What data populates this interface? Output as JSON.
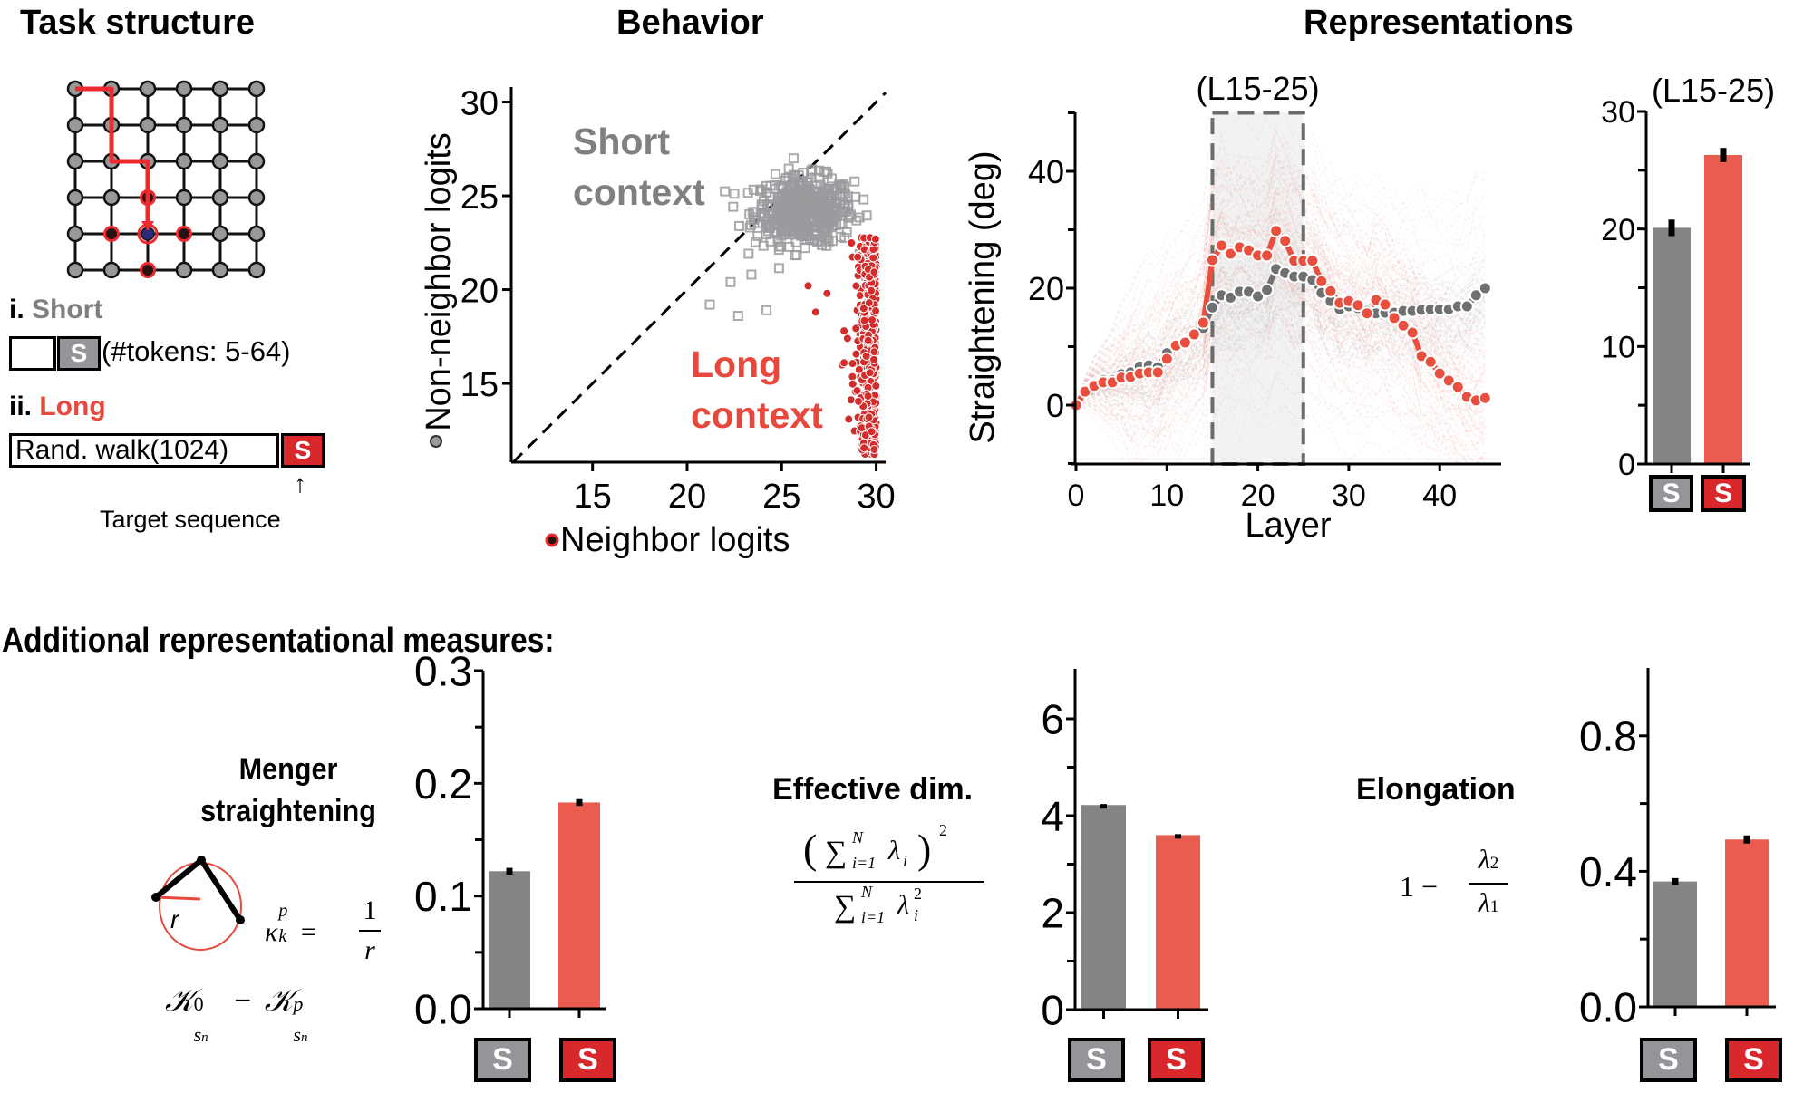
{
  "colors": {
    "short": "#838486",
    "short_box": "#939598",
    "long": "#E95C4F",
    "long_box": "#D8282C",
    "long_label": "#E8473B",
    "short_label": "#808080",
    "node": "#999999",
    "path": "#EE2A2E",
    "target_node": "#2D2A7A",
    "neighbor_node": "#2A1212",
    "highlight_region": "#F2F2F2"
  },
  "sections": {
    "task_structure": "Task structure",
    "behavior": "Behavior",
    "representations": "Representations",
    "additional": "Additional representational measures:"
  },
  "task": {
    "grid_size": 6,
    "path_nodes": [
      [
        0,
        0
      ],
      [
        1,
        0
      ],
      [
        1,
        1
      ],
      [
        1,
        2
      ],
      [
        2,
        2
      ],
      [
        2,
        3
      ],
      [
        2,
        4
      ]
    ],
    "target_node": [
      2,
      4
    ],
    "neighbor_nodes": [
      [
        2,
        3
      ],
      [
        1,
        4
      ],
      [
        3,
        4
      ],
      [
        2,
        5
      ]
    ],
    "short_prefix": "i.",
    "short_label": "Short",
    "short_token_box": "S",
    "short_tokens_note": "(#tokens: 5-64)",
    "long_prefix": "ii.",
    "long_label": "Long",
    "long_walk_box": "Rand. walk(1024)",
    "long_token_box": "S",
    "target_arrow": "↑",
    "target_caption": "Target sequence"
  },
  "chart_data": [
    {
      "id": "behavior-scatter",
      "type": "scatter",
      "title": "Behavior",
      "xlabel": "Neighbor logits",
      "ylabel": "Non-neighbor logits",
      "xlim": [
        10.7,
        30.5
      ],
      "ylim": [
        10.8,
        30.8
      ],
      "xticks": [
        15,
        20,
        25,
        30
      ],
      "yticks": [
        15,
        20,
        25,
        30
      ],
      "diagonal": "y = x (dashed)",
      "annotations": [
        {
          "text": [
            "Short",
            "context"
          ],
          "series": "Short context"
        },
        {
          "text": [
            "Long",
            "context"
          ],
          "series": "Long context"
        }
      ],
      "series": [
        {
          "name": "Short context",
          "marker": "open-square",
          "cluster": {
            "x_range": [
              21,
              29.5
            ],
            "y_range": [
              19,
              27
            ],
            "x_center": 26.2,
            "y_center": 24.2,
            "n": 500
          },
          "outliers": [
            [
              21.2,
              19.2
            ],
            [
              22.7,
              18.6
            ],
            [
              24.2,
              18.9
            ],
            [
              23.4,
              20.8
            ],
            [
              22.3,
              20.4
            ]
          ]
        },
        {
          "name": "Long context",
          "marker": "filled-circle",
          "cluster": {
            "x_range": [
              28.4,
              30.0
            ],
            "y_range": [
              11.2,
              22.8
            ],
            "x_center": 29.5,
            "y_center": 18,
            "n": 500
          },
          "outliers": [
            [
              26.4,
              20.2
            ],
            [
              27.4,
              19.8
            ],
            [
              26.8,
              18.8
            ],
            [
              28.3,
              17.8
            ],
            [
              28.3,
              16.1
            ]
          ]
        }
      ]
    },
    {
      "id": "straightening-by-layer",
      "type": "line",
      "xlabel": "Layer",
      "ylabel": "Straightening (deg)",
      "xlim": [
        -0.5,
        47
      ],
      "ylim": [
        -10,
        50
      ],
      "xticks": [
        0,
        10,
        20,
        30,
        40
      ],
      "yticks": [
        0,
        20,
        40
      ],
      "yminor": [
        -10,
        10,
        30,
        50
      ],
      "highlight": {
        "label": "(L15-25)",
        "x_range": [
          15,
          25
        ]
      },
      "background": "individual sequences shown as faint dashed lines",
      "series": [
        {
          "name": "Short context",
          "color_key": "short",
          "x": [
            0,
            1,
            2,
            3,
            4,
            5,
            6,
            7,
            8,
            9,
            10,
            11,
            12,
            13,
            14,
            15,
            16,
            17,
            18,
            19,
            20,
            21,
            22,
            23,
            24,
            25,
            26,
            27,
            28,
            29,
            30,
            31,
            32,
            33,
            34,
            35,
            36,
            37,
            38,
            39,
            40,
            41,
            42,
            43,
            44,
            45
          ],
          "values": [
            0,
            2.4,
            3.6,
            4.3,
            4.3,
            5.3,
            5.6,
            6.6,
            6.8,
            6.5,
            8.9,
            10.2,
            10.9,
            12.0,
            13.2,
            16.7,
            18.8,
            18.4,
            19.4,
            19.4,
            18.6,
            19.7,
            23.3,
            22.6,
            22.0,
            22.0,
            21.4,
            19.2,
            17.8,
            16.4,
            16.9,
            16.6,
            16.1,
            15.7,
            15.8,
            15.8,
            16.1,
            16.1,
            16.3,
            16.4,
            16.4,
            16.4,
            16.9,
            16.9,
            18.8,
            20.0
          ]
        },
        {
          "name": "Long context",
          "color_key": "long",
          "x": [
            0,
            1,
            2,
            3,
            4,
            5,
            6,
            7,
            8,
            9,
            10,
            11,
            12,
            13,
            14,
            15,
            16,
            17,
            18,
            19,
            20,
            21,
            22,
            23,
            24,
            25,
            26,
            27,
            28,
            29,
            30,
            31,
            32,
            33,
            34,
            35,
            36,
            37,
            38,
            39,
            40,
            41,
            42,
            43,
            44,
            45
          ],
          "values": [
            0,
            2.3,
            3.3,
            3.9,
            3.9,
            4.7,
            4.8,
            5.4,
            5.6,
            5.6,
            7.9,
            10.2,
            10.7,
            12.1,
            14.1,
            24.8,
            27.3,
            25.9,
            27.0,
            26.5,
            25.6,
            25.6,
            29.8,
            28.1,
            24.7,
            24.7,
            24.7,
            21.2,
            19.5,
            17.5,
            17.8,
            17.1,
            15.7,
            18.0,
            17.2,
            14.9,
            13.6,
            12.4,
            8.4,
            7.4,
            5.4,
            4.2,
            3.1,
            1.4,
            0.8,
            1.2
          ]
        }
      ]
    },
    {
      "id": "straightening-l15-25-bar",
      "type": "bar",
      "title": "(L15-25)",
      "categories": [
        "S",
        "S"
      ],
      "category_names": [
        "Short",
        "Long"
      ],
      "values": [
        20.1,
        26.3
      ],
      "errors": [
        0.7,
        0.6
      ],
      "ylim": [
        0,
        30
      ],
      "yticks": [
        0,
        10,
        20,
        30
      ],
      "yminor": [
        5,
        15,
        25
      ]
    },
    {
      "id": "menger-bar",
      "type": "bar",
      "title": "Menger straightening",
      "categories": [
        "S",
        "S"
      ],
      "category_names": [
        "Short",
        "Long"
      ],
      "values": [
        0.122,
        0.183
      ],
      "errors": [
        0.003,
        0.003
      ],
      "ylim": [
        0,
        0.3
      ],
      "yticks": [
        0.0,
        0.1,
        0.2,
        0.3
      ],
      "ytick_labels": [
        "0.0",
        "0.1",
        "0.2",
        "0.3"
      ],
      "yminor": [
        0.05,
        0.15,
        0.25
      ]
    },
    {
      "id": "effective-dim-bar",
      "type": "bar",
      "title": "Effective dim.",
      "categories": [
        "S",
        "S"
      ],
      "category_names": [
        "Short",
        "Long"
      ],
      "values": [
        4.22,
        3.6
      ],
      "errors": [
        0.02,
        0.02
      ],
      "ylim": [
        0,
        7
      ],
      "yticks": [
        0,
        2,
        4,
        6
      ],
      "yminor": [
        1,
        3,
        5
      ]
    },
    {
      "id": "elongation-bar",
      "type": "bar",
      "title": "Elongation",
      "categories": [
        "S",
        "S"
      ],
      "category_names": [
        "Short",
        "Long"
      ],
      "values": [
        0.37,
        0.494
      ],
      "errors": [
        0.01,
        0.012
      ],
      "ylim": [
        0,
        1.0
      ],
      "yticks": [
        0.0,
        0.4,
        0.8
      ],
      "ytick_labels": [
        "0.0",
        "0.4",
        "0.8"
      ],
      "yminor": [
        0.2,
        0.6
      ]
    }
  ],
  "measures": {
    "menger": {
      "title_line1": "Menger",
      "title_line2": "straightening",
      "radius_label": "r",
      "formula_kappa": "κ",
      "formula_kappa_sup": "p",
      "formula_kappa_sub": "k",
      "formula_eq": "=",
      "formula_num": "1",
      "formula_den": "r",
      "diff_formula_a": "𝒦",
      "diff_sup_a": "0",
      "diff_sub": "s",
      "diff_sub_sub": "n",
      "diff_minus": "−",
      "diff_formula_b": "𝒦",
      "diff_sup_b": "p"
    },
    "effective_dim": {
      "title": "Effective dim.",
      "numerator": "(∑ λ)",
      "num_sum_upper": "N",
      "num_sum_lower": "i=1",
      "num_lambda_sub": "i",
      "num_power": "2",
      "denominator": "∑ λ",
      "den_sum_upper": "N",
      "den_sum_lower": "i=1",
      "den_lambda_sub": "i",
      "den_lambda_sup": "2"
    },
    "elongation": {
      "title": "Elongation",
      "one_minus": "1 −",
      "num": "λ",
      "num_sub": "2",
      "den": "λ",
      "den_sub": "1"
    }
  }
}
